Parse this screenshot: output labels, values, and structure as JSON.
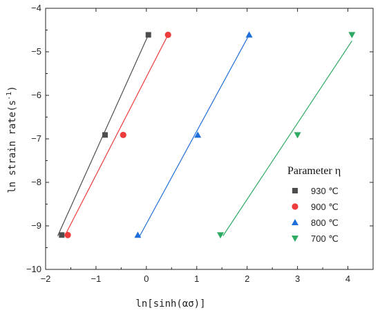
{
  "chart_data": {
    "type": "scatter",
    "title": "",
    "xlabel": "ln[sinh(ασ)]",
    "ylabel_main": "ln strain rate(s",
    "ylabel_sup": "-1",
    "ylabel_close": ")",
    "xlim": [
      -2,
      4.5
    ],
    "ylim": [
      -10,
      -4
    ],
    "xticks": [
      -2,
      -1,
      0,
      1,
      2,
      3,
      4
    ],
    "xtick_labels": [
      "−2",
      "−1",
      "0",
      "1",
      "2",
      "3",
      "4"
    ],
    "yticks": [
      -10,
      -9,
      -8,
      -7,
      -6,
      -5,
      -4
    ],
    "ytick_labels": [
      "−10",
      "−9",
      "−8",
      "−7",
      "−6",
      "−5",
      "−4"
    ],
    "grid": false,
    "legend_title": "Parameter η",
    "legend_position": "right",
    "series": [
      {
        "name": "930 ℃",
        "color": "#4d4d4d",
        "marker": "square",
        "x": [
          -1.68,
          -0.82,
          0.04
        ],
        "y": [
          -9.21,
          -6.91,
          -4.61
        ],
        "fit_x": [
          -1.76,
          0.04
        ],
        "fit_y": [
          -9.23,
          -4.61
        ]
      },
      {
        "name": "900 ℃",
        "color": "#ee3b3b",
        "marker": "circle",
        "x": [
          -1.56,
          -0.46,
          0.43
        ],
        "y": [
          -9.21,
          -6.91,
          -4.61
        ],
        "fit_x": [
          -1.62,
          0.43
        ],
        "fit_y": [
          -9.23,
          -4.61
        ]
      },
      {
        "name": "800 ℃",
        "color": "#1e6fd9",
        "marker": "triangle-up",
        "x": [
          -0.17,
          1.02,
          2.04
        ],
        "y": [
          -9.21,
          -6.91,
          -4.61
        ],
        "fit_x": [
          -0.13,
          2.04
        ],
        "fit_y": [
          -9.23,
          -4.61
        ]
      },
      {
        "name": "700 ℃",
        "color": "#2eaa62",
        "marker": "triangle-down",
        "x": [
          1.47,
          3.0,
          4.08
        ],
        "y": [
          -9.21,
          -6.91,
          -4.61
        ],
        "fit_x": [
          1.52,
          4.08
        ],
        "fit_y": [
          -9.23,
          -4.75
        ]
      }
    ]
  }
}
